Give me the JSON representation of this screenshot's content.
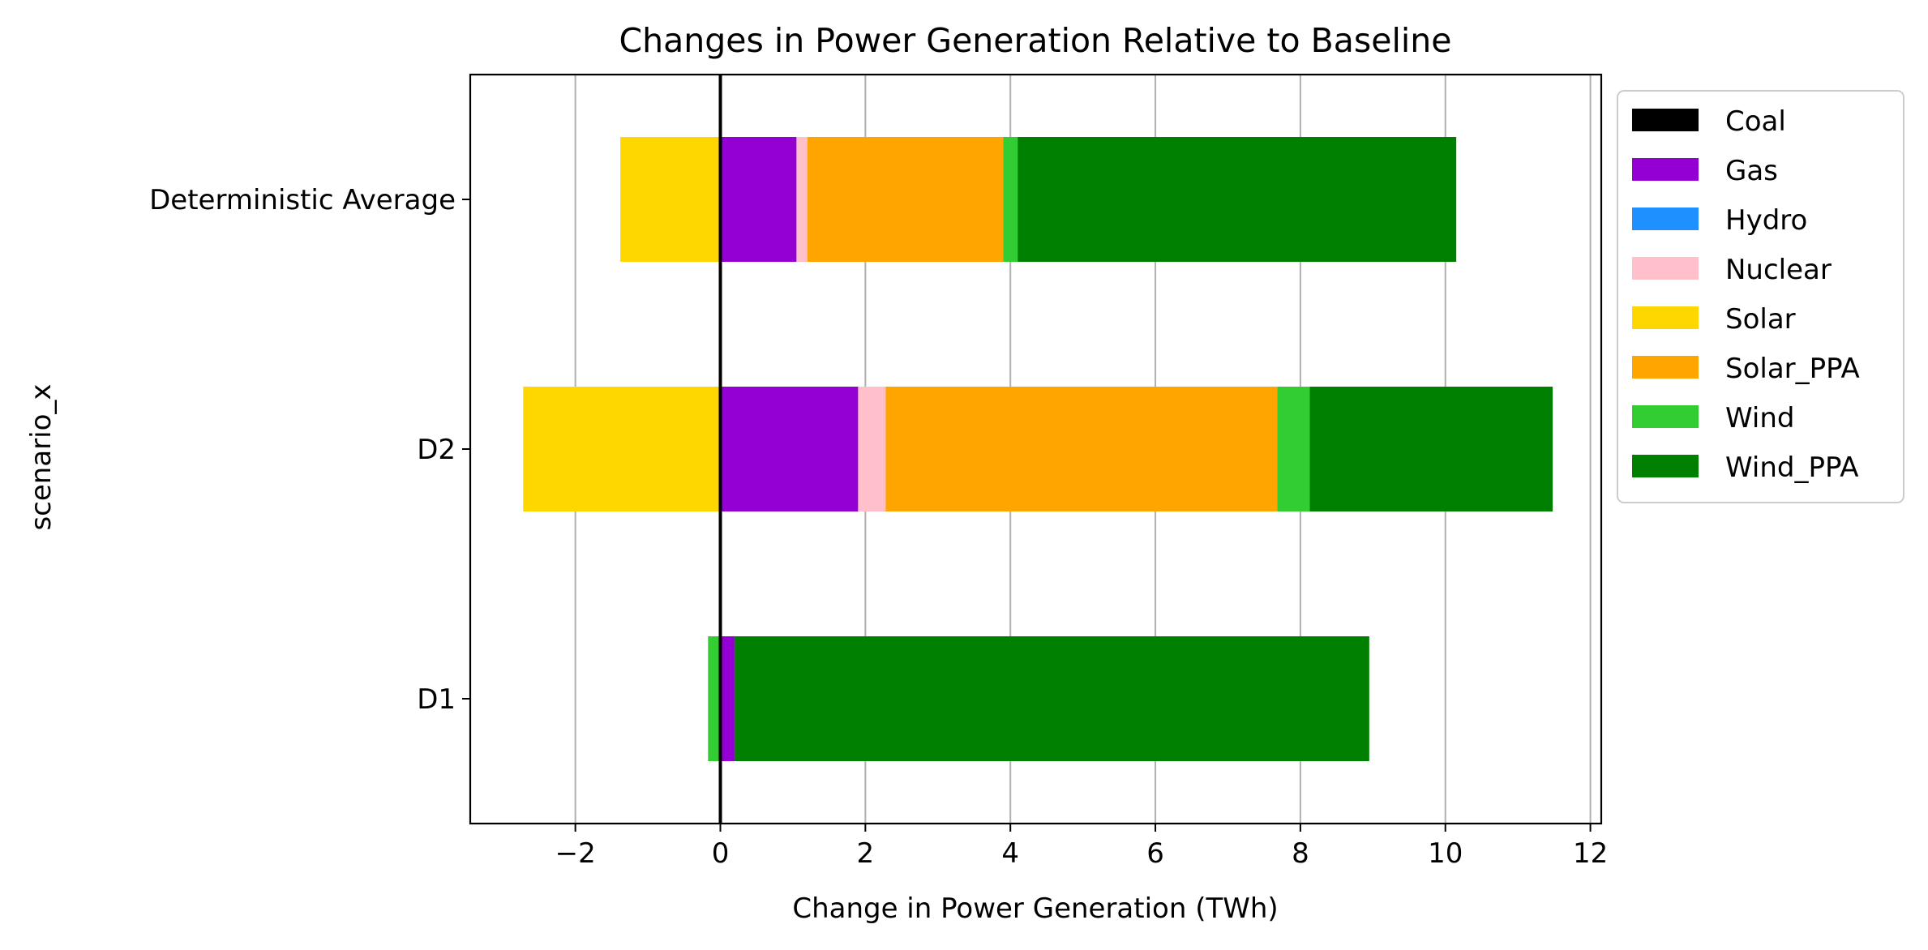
{
  "chart_data": {
    "type": "bar",
    "orientation": "horizontal",
    "stacked": true,
    "title": "Changes in Power Generation Relative to Baseline",
    "xlabel": "Change in Power Generation (TWh)",
    "ylabel": "scenario_x",
    "xlim": [
      -3.45,
      12.15
    ],
    "xticks": [
      -2,
      0,
      2,
      4,
      6,
      8,
      10,
      12
    ],
    "xtick_labels": [
      "−2",
      "0",
      "2",
      "4",
      "6",
      "8",
      "10",
      "12"
    ],
    "grid": "x-axis vertical lines",
    "zero_line": true,
    "legend_position": "outside right, top",
    "categories": [
      "D1",
      "D2",
      "Deterministic Average"
    ],
    "series": [
      {
        "name": "Coal",
        "color": "#000000",
        "values": [
          0.0,
          0.0,
          0.0
        ]
      },
      {
        "name": "Gas",
        "color": "#9400D3",
        "values": [
          0.2,
          1.9,
          1.05
        ]
      },
      {
        "name": "Hydro",
        "color": "#1E90FF",
        "values": [
          0.0,
          0.0,
          0.0
        ]
      },
      {
        "name": "Nuclear",
        "color": "#FFC0CB",
        "values": [
          0.0,
          0.38,
          0.15
        ]
      },
      {
        "name": "Solar",
        "color": "#FFD700",
        "values": [
          0.0,
          -2.72,
          -1.38
        ]
      },
      {
        "name": "Solar_PPA",
        "color": "#FFA500",
        "values": [
          0.0,
          5.4,
          2.7
        ]
      },
      {
        "name": "Wind",
        "color": "#32CD32",
        "values": [
          -0.17,
          0.45,
          0.2
        ]
      },
      {
        "name": "Wind_PPA",
        "color": "#008000",
        "values": [
          8.75,
          3.35,
          6.05
        ]
      }
    ]
  }
}
